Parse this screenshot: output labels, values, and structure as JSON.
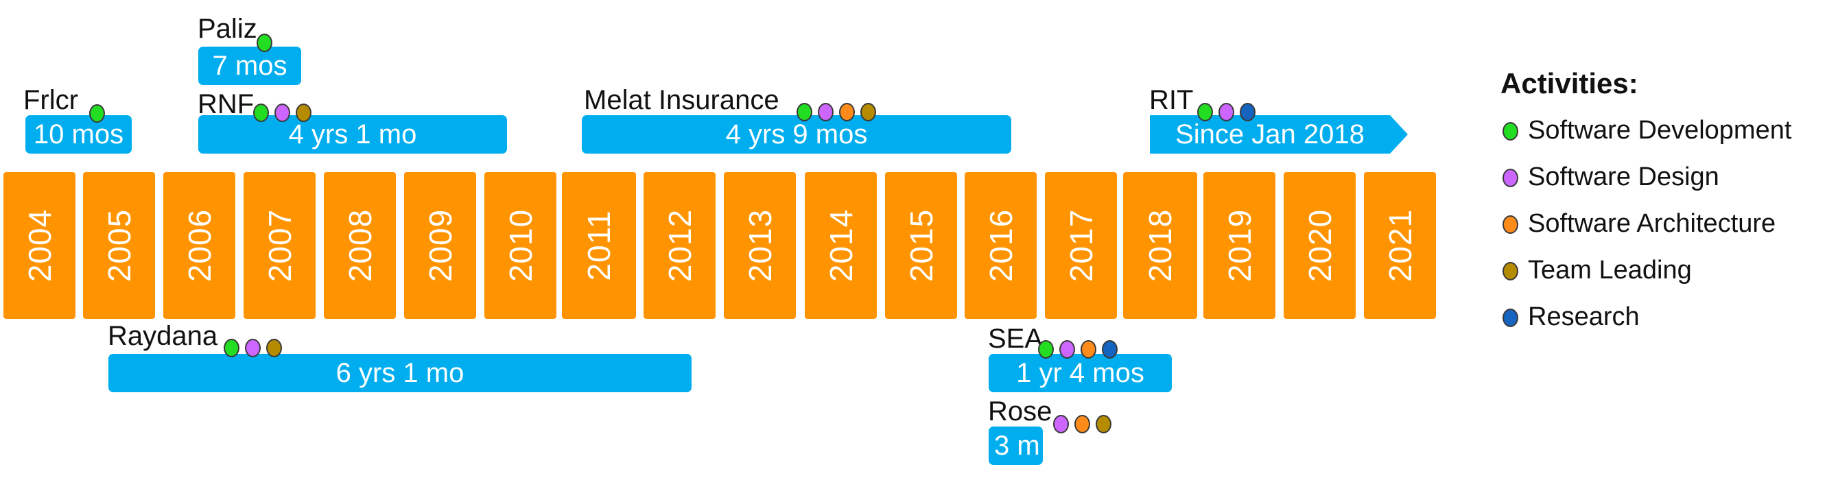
{
  "colors": {
    "year_box": "#FF9400",
    "job_bar": "#00AEEF",
    "activity": {
      "development": "#22DD22",
      "design": "#CC66FF",
      "architecture": "#FF8C1A",
      "leading": "#B58B00",
      "research": "#1565C0"
    }
  },
  "years": [
    "2004",
    "2005",
    "2006",
    "2007",
    "2008",
    "2009",
    "2010",
    "2011",
    "2012",
    "2013",
    "2014",
    "2015",
    "2016",
    "2017",
    "2018",
    "2019",
    "2020",
    "2021"
  ],
  "jobs": [
    {
      "name": "Frlcr",
      "duration": "10 mos",
      "activities": [
        "development"
      ]
    },
    {
      "name": "Paliz",
      "duration": "7 mos",
      "activities": [
        "development"
      ]
    },
    {
      "name": "RNF",
      "duration": "4 yrs 1 mo",
      "activities": [
        "development",
        "design",
        "leading"
      ]
    },
    {
      "name": "Melat  Insurance",
      "duration": "4 yrs 9 mos",
      "activities": [
        "development",
        "design",
        "architecture",
        "leading"
      ]
    },
    {
      "name": "RIT",
      "duration": "Since Jan 2018",
      "activities": [
        "development",
        "design",
        "research"
      ]
    },
    {
      "name": "Raydana",
      "duration": "6 yrs 1 mo",
      "activities": [
        "development",
        "design",
        "leading"
      ]
    },
    {
      "name": "SEA",
      "duration": "1 yr 4 mos",
      "activities": [
        "development",
        "design",
        "architecture",
        "research"
      ]
    },
    {
      "name": "Rose",
      "duration": "3 m",
      "activities": [
        "design",
        "architecture",
        "leading"
      ]
    }
  ],
  "legend": {
    "title": "Activities:",
    "items": [
      {
        "key": "development",
        "label": "Software Development"
      },
      {
        "key": "design",
        "label": "Software Design"
      },
      {
        "key": "architecture",
        "label": "Software Architecture"
      },
      {
        "key": "leading",
        "label": "Team Leading"
      },
      {
        "key": "research",
        "label": "Research"
      }
    ]
  }
}
